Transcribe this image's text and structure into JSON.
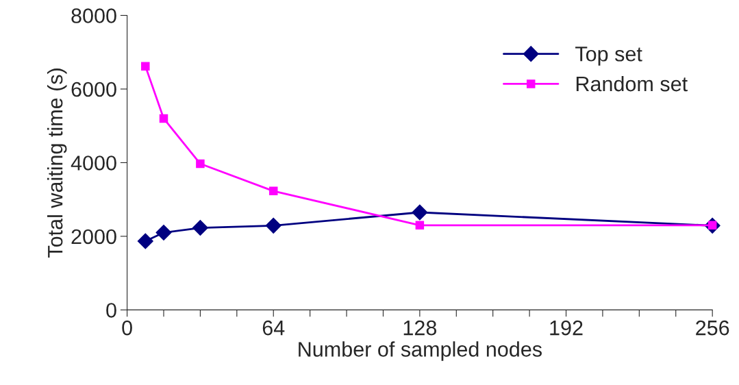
{
  "chart_data": {
    "type": "line",
    "xlabel": "Number of sampled nodes",
    "ylabel": "Total waiting time (s)",
    "x": [
      8,
      16,
      32,
      64,
      128,
      256
    ],
    "series": [
      {
        "name": "Top set",
        "color": "#000080",
        "marker": "diamond",
        "values": [
          1870,
          2100,
          2230,
          2290,
          2650,
          2290
        ]
      },
      {
        "name": "Random set",
        "color": "#ff00ff",
        "marker": "square",
        "values": [
          6620,
          5200,
          3970,
          3230,
          2300,
          2300
        ]
      }
    ],
    "xlim": [
      0,
      256
    ],
    "xticks": [
      0,
      {
        "value": 16,
        "label": null
      },
      {
        "value": 32,
        "label": null
      },
      {
        "value": 48,
        "label": null
      },
      64,
      {
        "value": 80,
        "label": null
      },
      {
        "value": 96,
        "label": null
      },
      {
        "value": 112,
        "label": null
      },
      128,
      {
        "value": 144,
        "label": null
      },
      {
        "value": 160,
        "label": null
      },
      {
        "value": 176,
        "label": null
      },
      192,
      {
        "value": 208,
        "label": null
      },
      {
        "value": 224,
        "label": null
      },
      {
        "value": 240,
        "label": null
      },
      256
    ],
    "ylim": [
      0,
      8000
    ],
    "yticks": [
      0,
      2000,
      4000,
      6000,
      8000
    ],
    "grid": false,
    "legend": "top right",
    "line_style": "solid"
  }
}
